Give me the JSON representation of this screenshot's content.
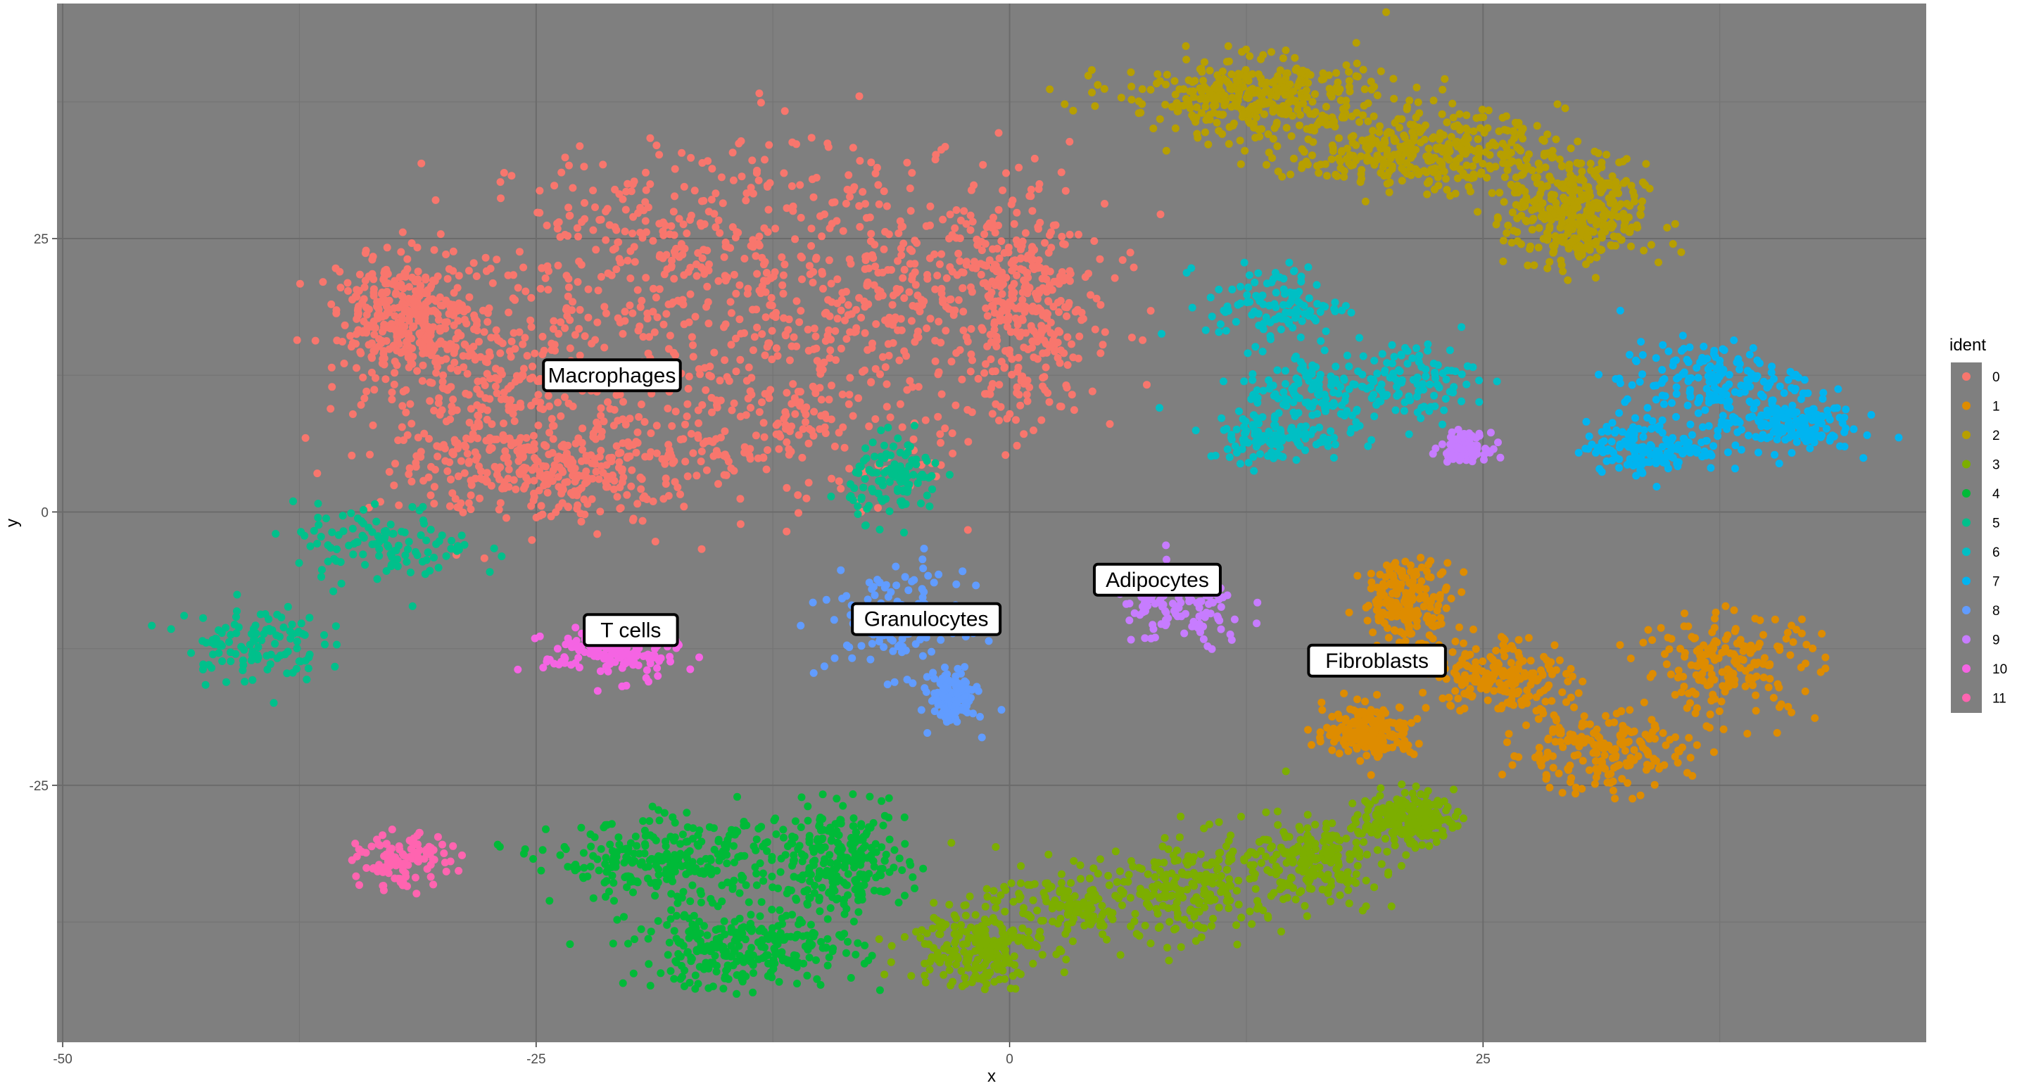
{
  "chart_data": {
    "type": "scatter",
    "title": "",
    "xlabel": "x",
    "ylabel": "y",
    "xlim": [
      -50.3,
      48.4
    ],
    "ylim": [
      -48.5,
      46.5
    ],
    "xticks": [
      "-50",
      "-25",
      "0",
      "25"
    ],
    "yticks": [
      "-25",
      "0",
      "25"
    ],
    "grid": true,
    "panel_background": "#7f7f7f",
    "legend": {
      "title": "ident",
      "placement": "right",
      "entries": [
        "0",
        "1",
        "2",
        "3",
        "4",
        "5",
        "6",
        "7",
        "8",
        "9",
        "10",
        "11"
      ]
    },
    "colors": {
      "0": "#F8766D",
      "1": "#DE8C00",
      "2": "#B79F00",
      "3": "#7CAE00",
      "4": "#00BA38",
      "5": "#00C08B",
      "6": "#00BFC4",
      "7": "#00B4F0",
      "8": "#619CFF",
      "9": "#C77CFF",
      "10": "#F564E3",
      "11": "#FF64B0"
    },
    "cluster_labels": [
      {
        "text": "Macrophages",
        "x": -21,
        "y": 12.5
      },
      {
        "text": "T cells",
        "x": -20,
        "y": -10.8
      },
      {
        "text": "Granulocytes",
        "x": -4.4,
        "y": -9.8
      },
      {
        "text": "Adipocytes",
        "x": 7.8,
        "y": -6.2
      },
      {
        "text": "Fibroblasts",
        "x": 19.4,
        "y": -13.6
      }
    ],
    "clusters": [
      {
        "ident": "0",
        "n": 2200,
        "blobs": [
          [
            -18,
            24,
            8,
            8
          ],
          [
            -6,
            22,
            8,
            9
          ],
          [
            -28,
            12,
            6,
            8
          ],
          [
            -12,
            10,
            9,
            8
          ],
          [
            1,
            18,
            3,
            8
          ],
          [
            -32,
            18,
            3,
            4
          ],
          [
            -24,
            4,
            6,
            4
          ]
        ]
      },
      {
        "ident": "2",
        "n": 1100,
        "blobs": [
          [
            13,
            38,
            6,
            3
          ],
          [
            22,
            33,
            6,
            3
          ],
          [
            30,
            27,
            3,
            4
          ]
        ]
      },
      {
        "ident": "6",
        "n": 450,
        "blobs": [
          [
            14,
            19,
            3,
            3
          ],
          [
            16,
            11,
            3,
            3
          ],
          [
            14,
            7,
            3,
            2
          ],
          [
            21,
            12,
            3,
            3
          ]
        ]
      },
      {
        "ident": "7",
        "n": 480,
        "blobs": [
          [
            37,
            12,
            4,
            3
          ],
          [
            41,
            8,
            3,
            2
          ],
          [
            34,
            6,
            3,
            2
          ]
        ]
      },
      {
        "ident": "5",
        "n": 340,
        "blobs": [
          [
            -40,
            -12,
            3,
            3
          ],
          [
            -33,
            -3,
            4,
            3
          ],
          [
            -6,
            3,
            2,
            3
          ]
        ]
      },
      {
        "ident": "9",
        "n": 230,
        "blobs": [
          [
            9,
            -9,
            3,
            3
          ],
          [
            24,
            6,
            1,
            1
          ]
        ]
      },
      {
        "ident": "8",
        "n": 270,
        "blobs": [
          [
            -6,
            -10,
            3,
            4
          ],
          [
            -3,
            -17,
            1,
            2
          ]
        ]
      },
      {
        "ident": "10",
        "n": 150,
        "blobs": [
          [
            -21,
            -13,
            3,
            2
          ]
        ]
      },
      {
        "ident": "11",
        "n": 110,
        "blobs": [
          [
            -32,
            -32,
            2,
            2
          ]
        ]
      },
      {
        "ident": "1",
        "n": 950,
        "blobs": [
          [
            21,
            -8,
            2,
            3
          ],
          [
            26,
            -15,
            3,
            3
          ],
          [
            31,
            -22,
            4,
            3
          ],
          [
            38,
            -14,
            4,
            4
          ],
          [
            19,
            -20,
            2,
            2
          ]
        ]
      },
      {
        "ident": "4",
        "n": 800,
        "blobs": [
          [
            -18,
            -32,
            5,
            3
          ],
          [
            -14,
            -40,
            5,
            3
          ],
          [
            -9,
            -32,
            3,
            4
          ]
        ]
      },
      {
        "ident": "3",
        "n": 950,
        "blobs": [
          [
            -2,
            -40,
            3,
            3
          ],
          [
            4,
            -36,
            5,
            3
          ],
          [
            10,
            -34,
            4,
            4
          ],
          [
            16,
            -32,
            3,
            3
          ],
          [
            21,
            -28,
            2,
            2
          ]
        ]
      }
    ]
  }
}
